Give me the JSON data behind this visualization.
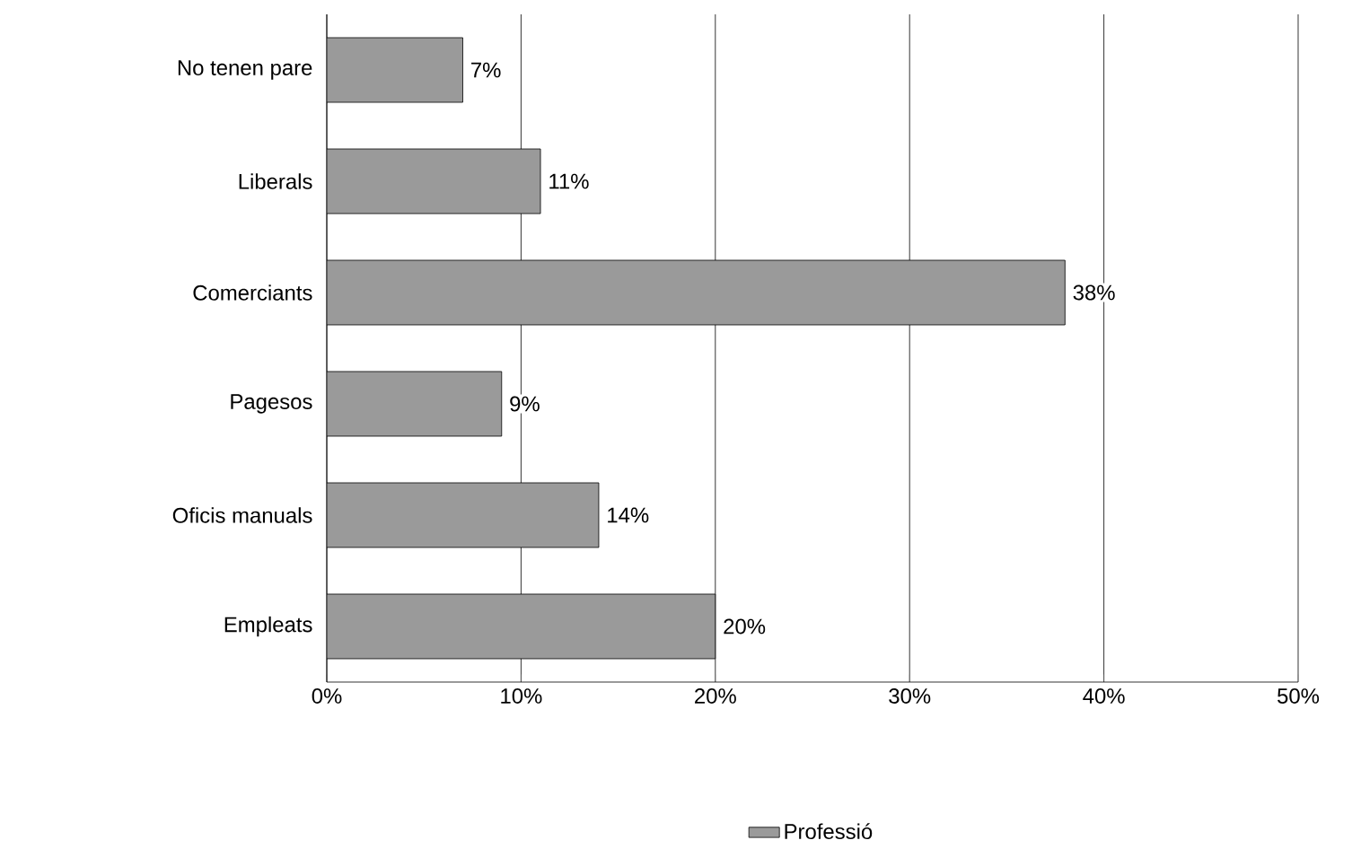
{
  "chart_data": {
    "type": "bar",
    "orientation": "horizontal",
    "categories": [
      "No tenen pare",
      "Liberals",
      "Comerciants",
      "Pagesos",
      "Oficis manuals",
      "Empleats"
    ],
    "series": [
      {
        "name": "Professió",
        "color": "#9a9a9a",
        "values": [
          7,
          11,
          38,
          9,
          14,
          20
        ],
        "value_labels": [
          "7%",
          "11%",
          "38%",
          "9%",
          "14%",
          "20%"
        ]
      }
    ],
    "xlim": [
      0,
      50
    ],
    "xticks": [
      {
        "value": 0,
        "label": "0%"
      },
      {
        "value": 10,
        "label": "10%"
      },
      {
        "value": 20,
        "label": "20%"
      },
      {
        "value": 30,
        "label": "30%"
      },
      {
        "value": 40,
        "label": "40%"
      },
      {
        "value": 50,
        "label": "50%"
      }
    ],
    "grid": "x",
    "legend": "bottom"
  }
}
